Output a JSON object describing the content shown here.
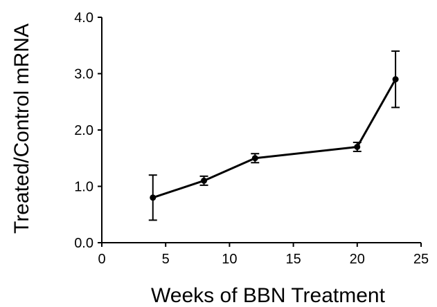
{
  "chart_data": {
    "type": "line",
    "title": "",
    "xlabel": "Weeks of BBN Treatment",
    "ylabel": "Treated/Control mRNA",
    "xlim": [
      0,
      25
    ],
    "ylim": [
      0,
      4
    ],
    "x_ticks": [
      0,
      5,
      10,
      15,
      20,
      25
    ],
    "y_ticks": [
      0,
      1,
      2,
      3,
      4
    ],
    "x_tick_labels": [
      "0",
      "5",
      "10",
      "15",
      "20",
      "25"
    ],
    "y_tick_labels": [
      "0.0",
      "1.0",
      "2.0",
      "3.0",
      "4.0"
    ],
    "grid": false,
    "legend": "none",
    "series": [
      {
        "x": [
          4,
          8,
          12,
          20,
          23
        ],
        "y": [
          0.8,
          1.1,
          1.5,
          1.7,
          2.9
        ],
        "error": [
          0.4,
          0.08,
          0.08,
          0.08,
          0.5
        ]
      }
    ],
    "colors": {
      "line": "#000000",
      "marker": "#000000"
    }
  }
}
